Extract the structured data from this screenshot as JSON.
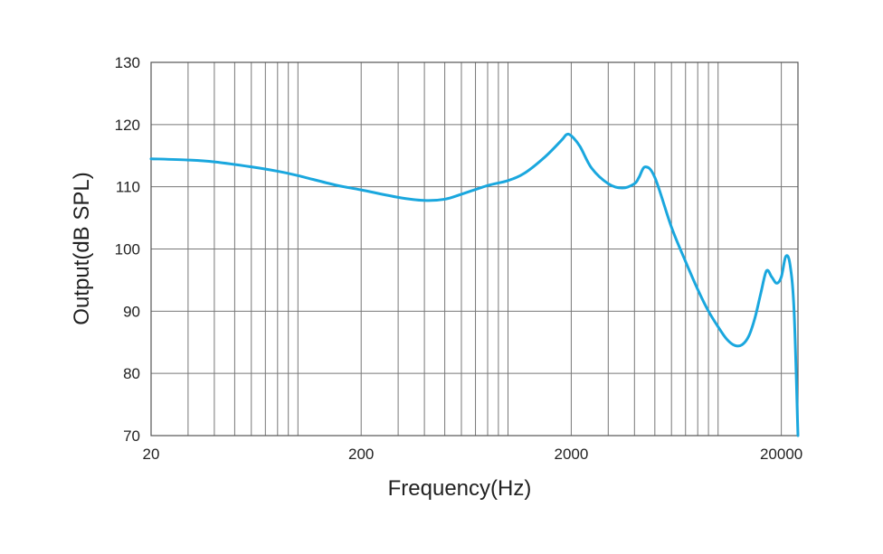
{
  "chart_data": {
    "type": "line",
    "title": "",
    "xlabel": "Frequency(Hz)",
    "ylabel": "Output(dB SPL)",
    "x_scale": "log",
    "xlim": [
      20,
      24000
    ],
    "ylim": [
      70,
      130
    ],
    "x_ticks": [
      20,
      200,
      2000,
      20000
    ],
    "x_tick_labels": [
      "20",
      "200",
      "2000",
      "20000"
    ],
    "y_ticks": [
      70,
      80,
      90,
      100,
      110,
      120,
      130
    ],
    "y_tick_labels": [
      "70",
      "80",
      "90",
      "100",
      "110",
      "120",
      "130"
    ],
    "grid": true,
    "line_color": "#1aa7de",
    "grid_color": "#777777",
    "series": [
      {
        "x": [
          20,
          30,
          40,
          60,
          80,
          100,
          150,
          200,
          300,
          400,
          500,
          600,
          800,
          1000,
          1200,
          1500,
          1800,
          1900,
          2000,
          2200,
          2500,
          3000,
          3500,
          4000,
          4200,
          4500,
          5000,
          6000,
          7000,
          8000,
          9000,
          10000,
          11000,
          12000,
          13000,
          14000,
          15000,
          16000,
          17000,
          18000,
          19000,
          20000,
          21000,
          22000,
          23000,
          24000
        ],
        "y": [
          114.5,
          114.3,
          114.0,
          113.2,
          112.5,
          111.8,
          110.3,
          109.5,
          108.3,
          107.8,
          108.0,
          108.8,
          110.2,
          111.0,
          112.2,
          114.8,
          117.5,
          118.4,
          118.2,
          116.5,
          113.0,
          110.5,
          109.8,
          110.5,
          111.5,
          113.2,
          111.5,
          103.5,
          98.0,
          93.5,
          90.0,
          87.5,
          85.5,
          84.5,
          84.6,
          86.0,
          89.0,
          93.0,
          96.5,
          95.5,
          94.5,
          95.5,
          98.8,
          97.5,
          90.0,
          70.0
        ]
      }
    ]
  }
}
